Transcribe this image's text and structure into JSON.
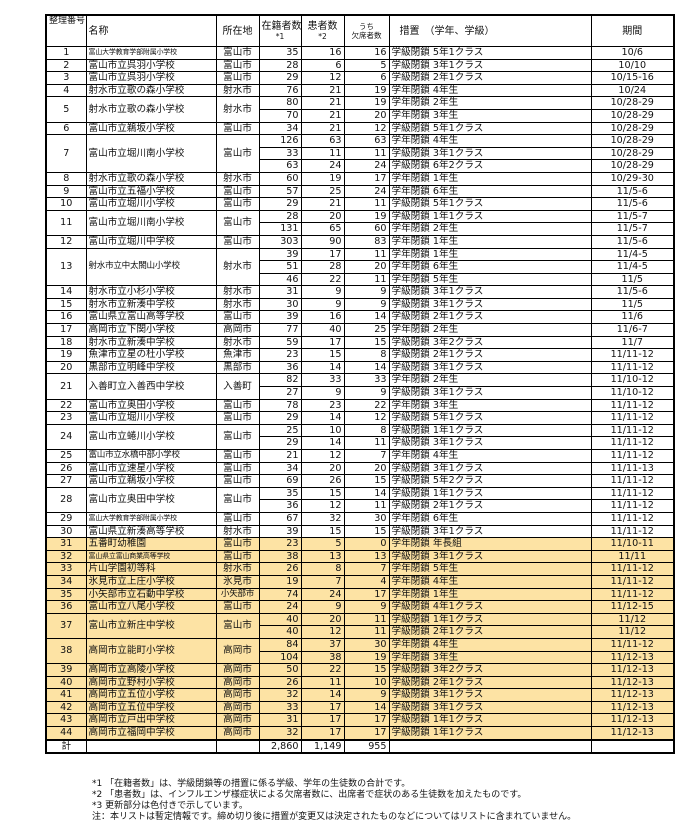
{
  "header": {
    "num": "整理番号",
    "name": "名称",
    "location": "所在地",
    "enrolled": "在籍者数",
    "enrolled_note": "*1",
    "patients": "患者数",
    "patients_note": "*2",
    "absent_top": "うち",
    "absent": "欠席者数",
    "measure": "措置　（学年、学級）",
    "period": "期間"
  },
  "highlight_color": "#fde3a4",
  "entries": [
    {
      "id": "1",
      "name": "富山大学教育学部附属小学校",
      "location": "富山市",
      "rows": [
        {
          "enrolled": "35",
          "patients": "16",
          "absent": "16",
          "measure": "学級閉鎖 5年1クラス",
          "period": "10/6"
        }
      ]
    },
    {
      "id": "2",
      "name": "富山市立呉羽小学校",
      "location": "富山市",
      "rows": [
        {
          "enrolled": "28",
          "patients": "6",
          "absent": "5",
          "measure": "学級閉鎖 3年1クラス",
          "period": "10/10"
        }
      ]
    },
    {
      "id": "3",
      "name": "富山市立呉羽小学校",
      "location": "富山市",
      "rows": [
        {
          "enrolled": "29",
          "patients": "12",
          "absent": "6",
          "measure": "学級閉鎖 2年1クラス",
          "period": "10/15-16"
        }
      ]
    },
    {
      "id": "4",
      "name": "射水市立歌の森小学校",
      "location": "射水市",
      "rows": [
        {
          "enrolled": "76",
          "patients": "21",
          "absent": "19",
          "measure": "学年閉鎖 4年生",
          "period": "10/24"
        }
      ]
    },
    {
      "id": "5",
      "name": "射水市立歌の森小学校",
      "location": "射水市",
      "rows": [
        {
          "enrolled": "80",
          "patients": "21",
          "absent": "19",
          "measure": "学年閉鎖 2年生",
          "period": "10/28-29"
        },
        {
          "enrolled": "70",
          "patients": "21",
          "absent": "20",
          "measure": "学年閉鎖 3年生",
          "period": "10/28-29"
        }
      ]
    },
    {
      "id": "6",
      "name": "富山市立鵜坂小学校",
      "location": "富山市",
      "rows": [
        {
          "enrolled": "34",
          "patients": "21",
          "absent": "12",
          "measure": "学級閉鎖 5年1クラス",
          "period": "10/28-29"
        }
      ]
    },
    {
      "id": "7",
      "name": "富山市立堀川南小学校",
      "location": "富山市",
      "rows": [
        {
          "enrolled": "126",
          "patients": "63",
          "absent": "63",
          "measure": "学年閉鎖 4年生",
          "period": "10/28-29"
        },
        {
          "enrolled": "33",
          "patients": "11",
          "absent": "11",
          "measure": "学級閉鎖 3年1クラス",
          "period": "10/28-29"
        },
        {
          "enrolled": "63",
          "patients": "24",
          "absent": "24",
          "measure": "学級閉鎖 6年2クラス",
          "period": "10/28-29"
        }
      ]
    },
    {
      "id": "8",
      "name": "射水市立歌の森小学校",
      "location": "射水市",
      "rows": [
        {
          "enrolled": "60",
          "patients": "19",
          "absent": "17",
          "measure": "学年閉鎖 1年生",
          "period": "10/29-30"
        }
      ]
    },
    {
      "id": "9",
      "name": "富山市立五福小学校",
      "location": "富山市",
      "rows": [
        {
          "enrolled": "57",
          "patients": "25",
          "absent": "24",
          "measure": "学年閉鎖 6年生",
          "period": "11/5-6"
        }
      ]
    },
    {
      "id": "10",
      "name": "富山市立堀川小学校",
      "location": "富山市",
      "rows": [
        {
          "enrolled": "29",
          "patients": "21",
          "absent": "11",
          "measure": "学級閉鎖 5年1クラス",
          "period": "11/5-6"
        }
      ]
    },
    {
      "id": "11",
      "name": "富山市立堀川南小学校",
      "location": "富山市",
      "rows": [
        {
          "enrolled": "28",
          "patients": "20",
          "absent": "19",
          "measure": "学級閉鎖 1年1クラス",
          "period": "11/5-7"
        },
        {
          "enrolled": "131",
          "patients": "65",
          "absent": "60",
          "measure": "学年閉鎖 2年生",
          "period": "11/5-7"
        }
      ]
    },
    {
      "id": "12",
      "name": "富山市立堀川中学校",
      "location": "富山市",
      "rows": [
        {
          "enrolled": "303",
          "patients": "90",
          "absent": "83",
          "measure": "学年閉鎖 1年生",
          "period": "11/5-6"
        }
      ]
    },
    {
      "id": "13",
      "name": "射水市立中太閤山小学校",
      "location": "射水市",
      "rows": [
        {
          "enrolled": "39",
          "patients": "17",
          "absent": "11",
          "measure": "学年閉鎖 1年生",
          "period": "11/4-5"
        },
        {
          "enrolled": "51",
          "patients": "28",
          "absent": "20",
          "measure": "学年閉鎖 6年生",
          "period": "11/4-5"
        },
        {
          "enrolled": "46",
          "patients": "22",
          "absent": "11",
          "measure": "学年閉鎖 5年生",
          "period": "11/5"
        }
      ]
    },
    {
      "id": "14",
      "name": "射水市立小杉小学校",
      "location": "射水市",
      "rows": [
        {
          "enrolled": "31",
          "patients": "9",
          "absent": "9",
          "measure": "学級閉鎖 3年1クラス",
          "period": "11/5-6"
        }
      ]
    },
    {
      "id": "15",
      "name": "射水市立新湊中学校",
      "location": "射水市",
      "rows": [
        {
          "enrolled": "30",
          "patients": "9",
          "absent": "9",
          "measure": "学級閉鎖 3年1クラス",
          "period": "11/5"
        }
      ]
    },
    {
      "id": "16",
      "name": "富山県立富山高等学校",
      "location": "富山市",
      "rows": [
        {
          "enrolled": "39",
          "patients": "16",
          "absent": "14",
          "measure": "学級閉鎖 2年1クラス",
          "period": "11/6"
        }
      ]
    },
    {
      "id": "17",
      "name": "高岡市立下関小学校",
      "location": "高岡市",
      "rows": [
        {
          "enrolled": "77",
          "patients": "40",
          "absent": "25",
          "measure": "学年閉鎖 2年生",
          "period": "11/6-7"
        }
      ]
    },
    {
      "id": "18",
      "name": "射水市立新湊中学校",
      "location": "射水市",
      "rows": [
        {
          "enrolled": "59",
          "patients": "17",
          "absent": "15",
          "measure": "学級閉鎖 3年2クラス",
          "period": "11/7"
        }
      ]
    },
    {
      "id": "19",
      "name": "魚津市立星の杜小学校",
      "location": "魚津市",
      "rows": [
        {
          "enrolled": "23",
          "patients": "15",
          "absent": "8",
          "measure": "学級閉鎖 2年1クラス",
          "period": "11/11-12"
        }
      ]
    },
    {
      "id": "20",
      "name": "黒部市立明峰中学校",
      "location": "黒部市",
      "rows": [
        {
          "enrolled": "36",
          "patients": "14",
          "absent": "14",
          "measure": "学級閉鎖 3年1クラス",
          "period": "11/11-12"
        }
      ]
    },
    {
      "id": "21",
      "name": "入善町立入善西中学校",
      "location": "入善町",
      "rows": [
        {
          "enrolled": "82",
          "patients": "33",
          "absent": "33",
          "measure": "学年閉鎖 2年生",
          "period": "11/10-12"
        },
        {
          "enrolled": "27",
          "patients": "9",
          "absent": "9",
          "measure": "学級閉鎖 3年1クラス",
          "period": "11/10-12"
        }
      ]
    },
    {
      "id": "22",
      "name": "富山市立奥田小学校",
      "location": "富山市",
      "rows": [
        {
          "enrolled": "78",
          "patients": "23",
          "absent": "22",
          "measure": "学年閉鎖 3年生",
          "period": "11/11-12"
        }
      ]
    },
    {
      "id": "23",
      "name": "富山市立堀川小学校",
      "location": "富山市",
      "rows": [
        {
          "enrolled": "29",
          "patients": "14",
          "absent": "12",
          "measure": "学級閉鎖 5年1クラス",
          "period": "11/11-12"
        }
      ]
    },
    {
      "id": "24",
      "name": "富山市立蜷川小学校",
      "location": "富山市",
      "rows": [
        {
          "enrolled": "25",
          "patients": "10",
          "absent": "8",
          "measure": "学級閉鎖 1年1クラス",
          "period": "11/11-12"
        },
        {
          "enrolled": "29",
          "patients": "14",
          "absent": "11",
          "measure": "学級閉鎖 3年1クラス",
          "period": "11/11-12"
        }
      ]
    },
    {
      "id": "25",
      "name": "富山市立水橋中部小学校",
      "location": "富山市",
      "rows": [
        {
          "enrolled": "21",
          "patients": "12",
          "absent": "7",
          "measure": "学年閉鎖 4年生",
          "period": "11/11-12"
        }
      ]
    },
    {
      "id": "26",
      "name": "富山市立速星小学校",
      "location": "富山市",
      "rows": [
        {
          "enrolled": "34",
          "patients": "20",
          "absent": "20",
          "measure": "学級閉鎖 3年1クラス",
          "period": "11/11-13"
        }
      ]
    },
    {
      "id": "27",
      "name": "富山市立鵜坂小学校",
      "location": "富山市",
      "rows": [
        {
          "enrolled": "69",
          "patients": "26",
          "absent": "15",
          "measure": "学級閉鎖 5年2クラス",
          "period": "11/11-12"
        }
      ]
    },
    {
      "id": "28",
      "name": "富山市立奥田中学校",
      "location": "富山市",
      "rows": [
        {
          "enrolled": "35",
          "patients": "15",
          "absent": "14",
          "measure": "学級閉鎖 1年1クラス",
          "period": "11/11-12"
        },
        {
          "enrolled": "36",
          "patients": "12",
          "absent": "11",
          "measure": "学級閉鎖 2年1クラス",
          "period": "11/11-12"
        }
      ]
    },
    {
      "id": "29",
      "name": "富山大学教育学部附属小学校",
      "location": "富山市",
      "rows": [
        {
          "enrolled": "67",
          "patients": "32",
          "absent": "30",
          "measure": "学年閉鎖 6年生",
          "period": "11/11-12"
        }
      ]
    },
    {
      "id": "30",
      "name": "富山県立新湊高等学校",
      "location": "射水市",
      "rows": [
        {
          "enrolled": "39",
          "patients": "15",
          "absent": "15",
          "measure": "学級閉鎖 3年1クラス",
          "period": "11/11-12"
        }
      ]
    },
    {
      "id": "31",
      "highlighted": true,
      "name": "五番町幼稚園",
      "location": "富山市",
      "rows": [
        {
          "enrolled": "23",
          "patients": "5",
          "absent": "0",
          "measure": "学年閉鎖 年長組",
          "period": "11/10-11"
        }
      ]
    },
    {
      "id": "32",
      "highlighted": true,
      "name": "富山県立富山商業高等学校",
      "location": "富山市",
      "rows": [
        {
          "enrolled": "38",
          "patients": "13",
          "absent": "13",
          "measure": "学級閉鎖 3年1クラス",
          "period": "11/11"
        }
      ]
    },
    {
      "id": "33",
      "highlighted": true,
      "name": "片山学園初等科",
      "location": "射水市",
      "rows": [
        {
          "enrolled": "26",
          "patients": "8",
          "absent": "7",
          "measure": "学年閉鎖 5年生",
          "period": "11/11-12"
        }
      ]
    },
    {
      "id": "34",
      "highlighted": true,
      "name": "氷見市立上庄小学校",
      "location": "氷見市",
      "rows": [
        {
          "enrolled": "19",
          "patients": "7",
          "absent": "4",
          "measure": "学年閉鎖 4年生",
          "period": "11/11-12"
        }
      ]
    },
    {
      "id": "35",
      "highlighted": true,
      "name": "小矢部市立石動中学校",
      "location": "小矢部市",
      "rows": [
        {
          "enrolled": "74",
          "patients": "24",
          "absent": "17",
          "measure": "学年閉鎖 1年生",
          "period": "11/11-12"
        }
      ]
    },
    {
      "id": "36",
      "highlighted": true,
      "name": "富山市立八尾小学校",
      "location": "富山市",
      "rows": [
        {
          "enrolled": "24",
          "patients": "9",
          "absent": "9",
          "measure": "学級閉鎖 4年1クラス",
          "period": "11/12-15"
        }
      ]
    },
    {
      "id": "37",
      "highlighted": true,
      "name": "富山市立新庄中学校",
      "location": "富山市",
      "rows": [
        {
          "enrolled": "40",
          "patients": "20",
          "absent": "11",
          "measure": "学級閉鎖 1年1クラス",
          "period": "11/12"
        },
        {
          "enrolled": "40",
          "patients": "12",
          "absent": "11",
          "measure": "学級閉鎖 2年1クラス",
          "period": "11/12"
        }
      ]
    },
    {
      "id": "38",
      "highlighted": true,
      "name": "高岡市立能町小学校",
      "location": "高岡市",
      "rows": [
        {
          "enrolled": "84",
          "patients": "37",
          "absent": "30",
          "measure": "学年閉鎖 4年生",
          "period": "11/11-12"
        },
        {
          "enrolled": "104",
          "patients": "38",
          "absent": "19",
          "measure": "学年閉鎖 3年生",
          "period": "11/12-13"
        }
      ]
    },
    {
      "id": "39",
      "highlighted": true,
      "name": "高岡市立高陵小学校",
      "location": "高岡市",
      "rows": [
        {
          "enrolled": "50",
          "patients": "22",
          "absent": "15",
          "measure": "学級閉鎖 3年2クラス",
          "period": "11/12-13"
        }
      ]
    },
    {
      "id": "40",
      "highlighted": true,
      "name": "高岡市立野村小学校",
      "location": "高岡市",
      "rows": [
        {
          "enrolled": "26",
          "patients": "11",
          "absent": "10",
          "measure": "学級閉鎖 2年1クラス",
          "period": "11/12-13"
        }
      ]
    },
    {
      "id": "41",
      "highlighted": true,
      "name": "高岡市立五位小学校",
      "location": "高岡市",
      "rows": [
        {
          "enrolled": "32",
          "patients": "14",
          "absent": "9",
          "measure": "学級閉鎖 3年1クラス",
          "period": "11/12-13"
        }
      ]
    },
    {
      "id": "42",
      "highlighted": true,
      "name": "高岡市立五位中学校",
      "location": "高岡市",
      "rows": [
        {
          "enrolled": "33",
          "patients": "17",
          "absent": "14",
          "measure": "学級閉鎖 3年1クラス",
          "period": "11/12-13"
        }
      ]
    },
    {
      "id": "43",
      "highlighted": true,
      "name": "高岡市立戸出中学校",
      "location": "高岡市",
      "rows": [
        {
          "enrolled": "31",
          "patients": "17",
          "absent": "17",
          "measure": "学級閉鎖 1年1クラス",
          "period": "11/12-13"
        }
      ]
    },
    {
      "id": "44",
      "highlighted": true,
      "name": "高岡市立福岡中学校",
      "location": "高岡市",
      "rows": [
        {
          "enrolled": "32",
          "patients": "17",
          "absent": "17",
          "measure": "学級閉鎖 1年1クラス",
          "period": "11/12-13"
        }
      ]
    }
  ],
  "total": {
    "label": "計",
    "enrolled": "2,860",
    "patients": "1,149",
    "absent": "955"
  },
  "notes": [
    "*1 「在籍者数」は、学級閉鎖等の措置に係る学級、学年の生徒数の合計です。",
    "*2 「患者数」は、インフルエンザ様症状による欠席者数に、出席者で症状のある生徒数を加えたものです。",
    "*3  更新部分は色付きで示しています。",
    "注：本リストは暫定情報です。締め切り後に措置が変更又は決定されたものなどについてはリストに含まれていません。"
  ]
}
